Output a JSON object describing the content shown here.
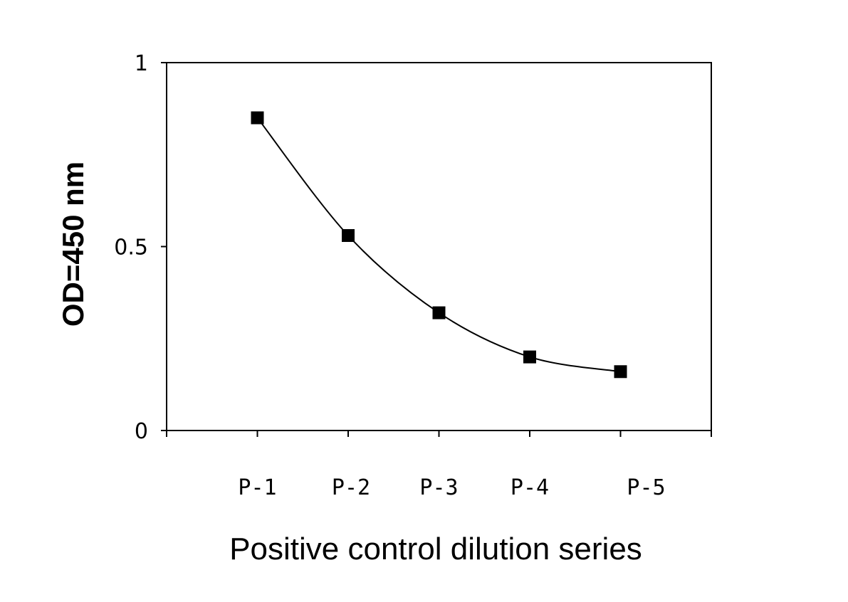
{
  "chart_data": {
    "type": "line",
    "title": "",
    "xlabel": "Positive control dilution series",
    "ylabel": "OD=450 nm",
    "categories": [
      "P-1",
      "P-2",
      "P-3",
      "P-4",
      "P-5"
    ],
    "series": [
      {
        "values": [
          0.85,
          0.53,
          0.32,
          0.2,
          0.16
        ],
        "color": "#000000",
        "marker": "square",
        "line": "smooth"
      }
    ],
    "ylim": [
      0,
      1
    ],
    "yticks": [
      {
        "value": 0,
        "label": "0"
      },
      {
        "value": 0.5,
        "label": "0.5"
      },
      {
        "value": 1,
        "label": "1"
      }
    ],
    "grid": false,
    "legend": "none"
  }
}
